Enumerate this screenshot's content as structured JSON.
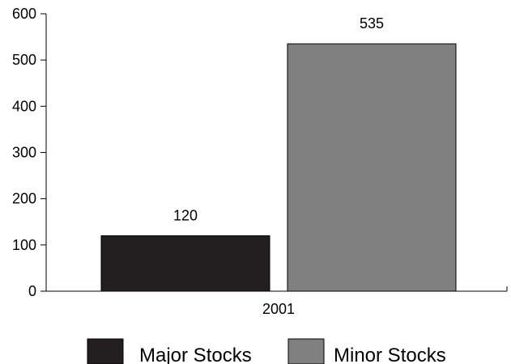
{
  "chart_data": {
    "type": "bar",
    "categories": [
      "2001"
    ],
    "series": [
      {
        "name": "Major Stocks",
        "values": [
          120
        ],
        "label": "120",
        "color": "#231f20"
      },
      {
        "name": "Minor Stocks",
        "values": [
          535
        ],
        "label": "535",
        "color": "#808080"
      }
    ],
    "ylim": [
      0,
      600
    ],
    "yticks": [
      "0",
      "100",
      "200",
      "300",
      "400",
      "500",
      "600"
    ],
    "grid": false,
    "legend_position": "bottom"
  }
}
